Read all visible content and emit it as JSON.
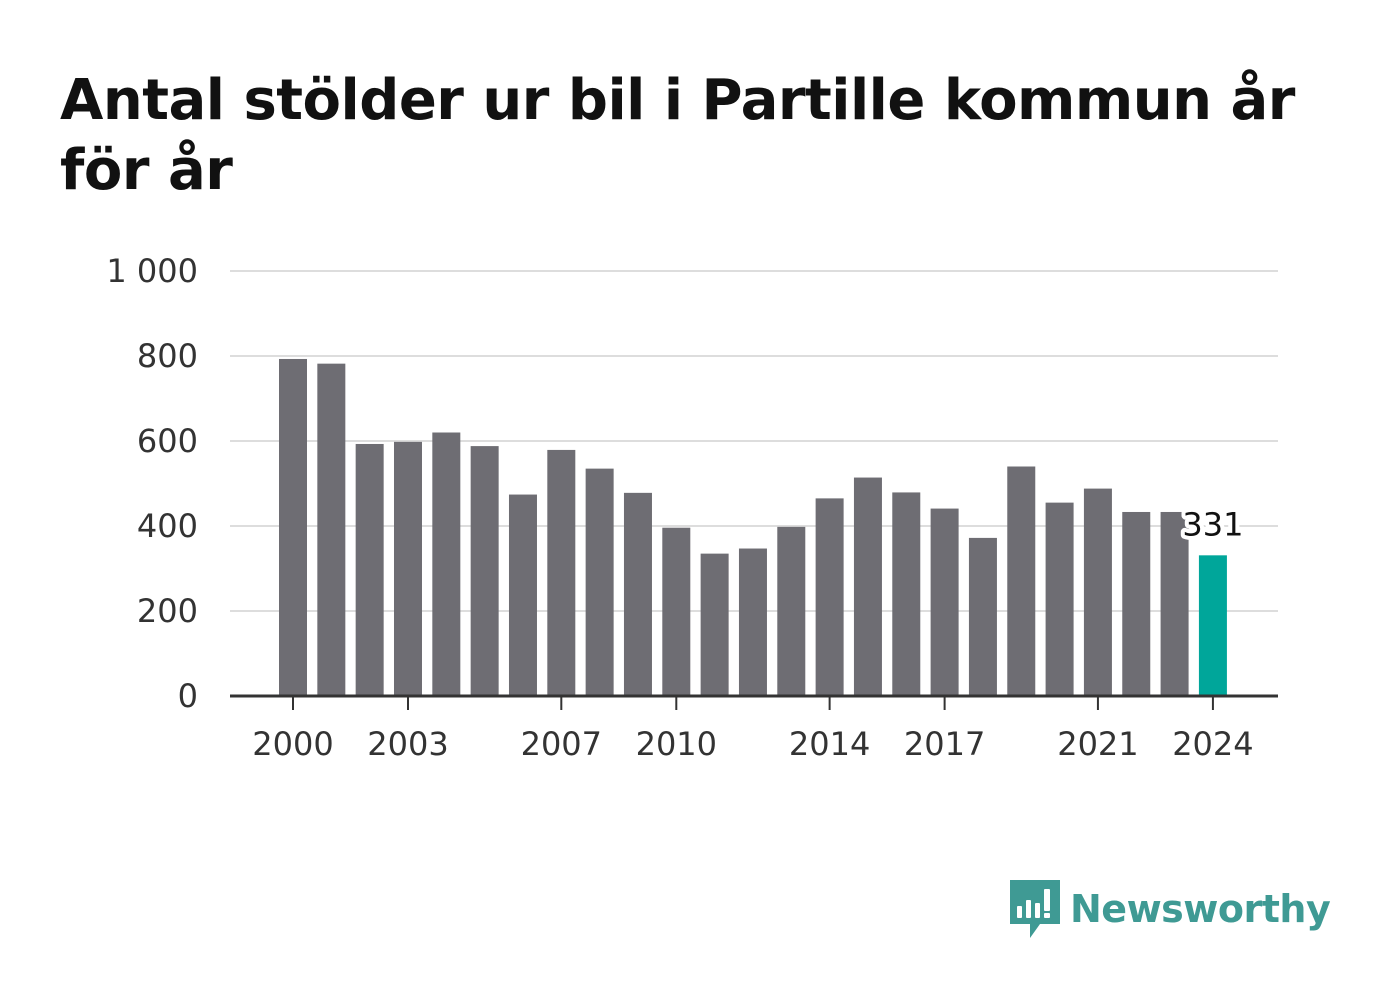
{
  "title": "Antal stölder ur bil i Partille kommun år för år",
  "brand": {
    "name": "Newsworthy",
    "color": "#3f9a94",
    "icon": "newsworthy-logo-icon"
  },
  "colors": {
    "bar": "#6e6d73",
    "highlight": "#00a69a",
    "grid": "#dddddd",
    "axis": "#333333"
  },
  "chart_data": {
    "type": "bar",
    "title": "Antal stölder ur bil i Partille kommun år för år",
    "xlabel": "",
    "ylabel": "",
    "categories": [
      "2000",
      "2001",
      "2002",
      "2003",
      "2004",
      "2005",
      "2006",
      "2007",
      "2008",
      "2009",
      "2010",
      "2011",
      "2012",
      "2013",
      "2014",
      "2015",
      "2016",
      "2017",
      "2018",
      "2019",
      "2020",
      "2021",
      "2022",
      "2023",
      "2024"
    ],
    "values": [
      793,
      782,
      593,
      598,
      620,
      588,
      474,
      579,
      535,
      478,
      396,
      335,
      347,
      398,
      465,
      514,
      479,
      441,
      372,
      540,
      455,
      488,
      433,
      433,
      331
    ],
    "highlight_index": 24,
    "ylim": [
      0,
      1000
    ],
    "yticks": [
      0,
      200,
      400,
      600,
      800,
      1000
    ],
    "ytick_labels": [
      "0",
      "200",
      "400",
      "600",
      "800",
      "1 000"
    ],
    "xtick_labels": [
      "2000",
      "2003",
      "2007",
      "2010",
      "2014",
      "2017",
      "2021",
      "2024"
    ],
    "data_labels": [
      {
        "category": "2024",
        "text": "331"
      }
    ],
    "grid": true,
    "legend": "none"
  }
}
